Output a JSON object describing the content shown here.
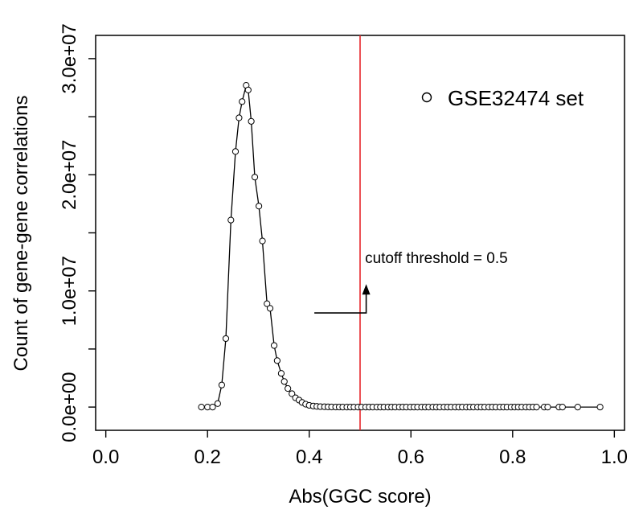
{
  "chart_data": {
    "type": "line",
    "title": "",
    "xlabel": "Abs(GGC score)",
    "ylabel": "Count of gene-gene correlations",
    "xlim": [
      -0.02,
      1.02
    ],
    "ylim": [
      -2000000,
      32000000
    ],
    "x_ticks": [
      0.0,
      0.2,
      0.4,
      0.6,
      0.8,
      1.0
    ],
    "x_tick_labels": [
      "0.0",
      "0.2",
      "0.4",
      "0.6",
      "0.8",
      "1.0"
    ],
    "y_ticks": [
      0,
      5000000,
      10000000,
      15000000,
      20000000,
      25000000,
      30000000
    ],
    "y_tick_labels": [
      "0.0e+00",
      "",
      "1.0e+07",
      "",
      "2.0e+07",
      "",
      "3.0e+07"
    ],
    "grid": false,
    "legend": {
      "position": "top-right",
      "entries": [
        "GSE32474 set"
      ]
    },
    "series": [
      {
        "name": "GSE32474 set",
        "marker": "open-circle",
        "color": "#000000",
        "x": [
          0.188,
          0.2,
          0.21,
          0.22,
          0.228,
          0.236,
          0.246,
          0.255,
          0.262,
          0.268,
          0.276,
          0.28,
          0.286,
          0.293,
          0.301,
          0.308,
          0.317,
          0.323,
          0.331,
          0.337,
          0.345,
          0.351,
          0.358,
          0.366,
          0.373,
          0.38,
          0.386,
          0.393,
          0.4,
          0.408,
          0.415,
          0.422,
          0.43,
          0.437,
          0.444,
          0.452,
          0.459,
          0.466,
          0.474,
          0.481,
          0.488,
          0.496,
          0.503,
          0.511,
          0.518,
          0.525,
          0.533,
          0.54,
          0.547,
          0.555,
          0.562,
          0.569,
          0.577,
          0.584,
          0.591,
          0.599,
          0.606,
          0.613,
          0.621,
          0.628,
          0.635,
          0.643,
          0.65,
          0.657,
          0.665,
          0.672,
          0.679,
          0.687,
          0.694,
          0.701,
          0.709,
          0.716,
          0.723,
          0.731,
          0.738,
          0.745,
          0.753,
          0.76,
          0.767,
          0.775,
          0.782,
          0.789,
          0.797,
          0.804,
          0.811,
          0.818,
          0.826,
          0.833,
          0.84,
          0.847,
          0.862,
          0.869,
          0.891,
          0.898,
          0.928,
          0.972
        ],
        "y": [
          0,
          0,
          0,
          300000,
          1900000,
          5900000,
          16100000,
          22000000,
          24900000,
          26300000,
          27700000,
          27300000,
          24600000,
          19800000,
          17300000,
          14300000,
          8900000,
          8500000,
          5300000,
          4000000,
          2900000,
          2200000,
          1600000,
          1150000,
          800000,
          600000,
          400000,
          250000,
          150000,
          90000,
          60000,
          40000,
          25000,
          15000,
          10000,
          5000,
          3000,
          2000,
          1000,
          1000,
          0,
          0,
          0,
          0,
          0,
          0,
          0,
          0,
          0,
          0,
          0,
          0,
          0,
          0,
          0,
          0,
          0,
          0,
          0,
          0,
          0,
          0,
          0,
          0,
          0,
          0,
          0,
          0,
          0,
          0,
          0,
          0,
          0,
          0,
          0,
          0,
          0,
          0,
          0,
          0,
          0,
          0,
          0,
          0,
          0,
          0,
          0,
          0,
          0,
          0,
          0,
          0,
          0,
          0,
          0,
          0
        ]
      }
    ],
    "reference_lines": [
      {
        "axis": "x",
        "value": 0.5,
        "color": "#e8262c"
      }
    ],
    "annotations": [
      {
        "text": "cutoff threshold = 0.5",
        "x": 0.65,
        "y": 12400000
      }
    ],
    "arrow": {
      "points": [
        [
          0.41,
          8100000
        ],
        [
          0.512,
          8100000
        ],
        [
          0.512,
          10100000
        ]
      ]
    }
  }
}
